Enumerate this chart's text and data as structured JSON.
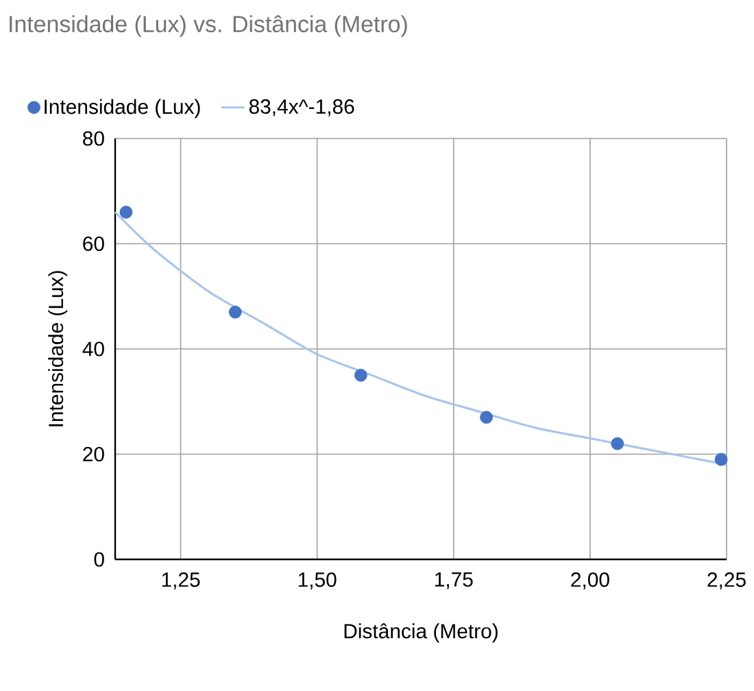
{
  "chart_data": {
    "type": "scatter",
    "title": "Intensidade (Lux) vs. Distância (Metro)",
    "xlabel": "Distância (Metro)",
    "ylabel": "Intensidade (Lux)",
    "xlim": [
      1.13,
      2.25
    ],
    "ylim": [
      0,
      80
    ],
    "xticks": [
      {
        "value": 1.25,
        "label": "1,25"
      },
      {
        "value": 1.5,
        "label": "1,50"
      },
      {
        "value": 1.75,
        "label": "1,75"
      },
      {
        "value": 2.0,
        "label": "2,00"
      },
      {
        "value": 2.25,
        "label": "2,25"
      }
    ],
    "yticks": [
      0,
      20,
      40,
      60,
      80
    ],
    "grid": true,
    "legend": "top",
    "series": [
      {
        "name": "Intensidade (Lux)",
        "color": "#4472c4",
        "marker": "circle",
        "x": [
          1.15,
          1.35,
          1.58,
          1.81,
          2.05,
          2.24
        ],
        "values": [
          66,
          47,
          35,
          27,
          22,
          19
        ]
      },
      {
        "name": "83,4x^-1,86",
        "type": "line",
        "marker": "none",
        "color": "#a9c6eb",
        "x": [
          1.13,
          1.2,
          1.3,
          1.4,
          1.5,
          1.6,
          1.7,
          1.8,
          1.9,
          2.0,
          2.1,
          2.2,
          2.25
        ],
        "values": [
          66,
          59,
          51,
          45,
          39,
          35,
          31,
          28,
          25,
          23,
          21,
          19,
          18
        ]
      }
    ]
  }
}
